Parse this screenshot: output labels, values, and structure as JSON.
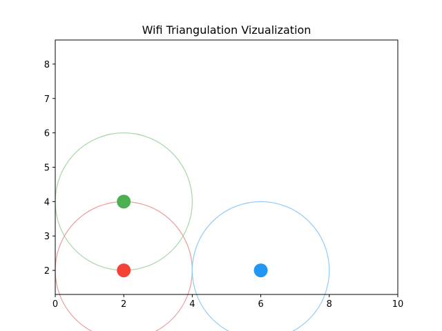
{
  "chart_data": {
    "type": "scatter",
    "title": "Wifi Triangulation Vizualization",
    "xlabel": "",
    "ylabel": "",
    "xlim": [
      0,
      10
    ],
    "ylim": [
      1.3,
      8.7
    ],
    "x_ticks": [
      "0",
      "2",
      "4",
      "6",
      "8",
      "10"
    ],
    "y_ticks": [
      "2",
      "3",
      "4",
      "5",
      "6",
      "7",
      "8"
    ],
    "grid": false,
    "points": [
      {
        "x": 2,
        "y": 4,
        "radius": 2,
        "color": "#4caf50",
        "ring_color": "#a5d6a7"
      },
      {
        "x": 2,
        "y": 2,
        "radius": 2,
        "color": "#f44336",
        "ring_color": "#ef9a9a"
      },
      {
        "x": 6,
        "y": 2,
        "radius": 2,
        "color": "#2196f3",
        "ring_color": "#90caf9"
      }
    ]
  }
}
